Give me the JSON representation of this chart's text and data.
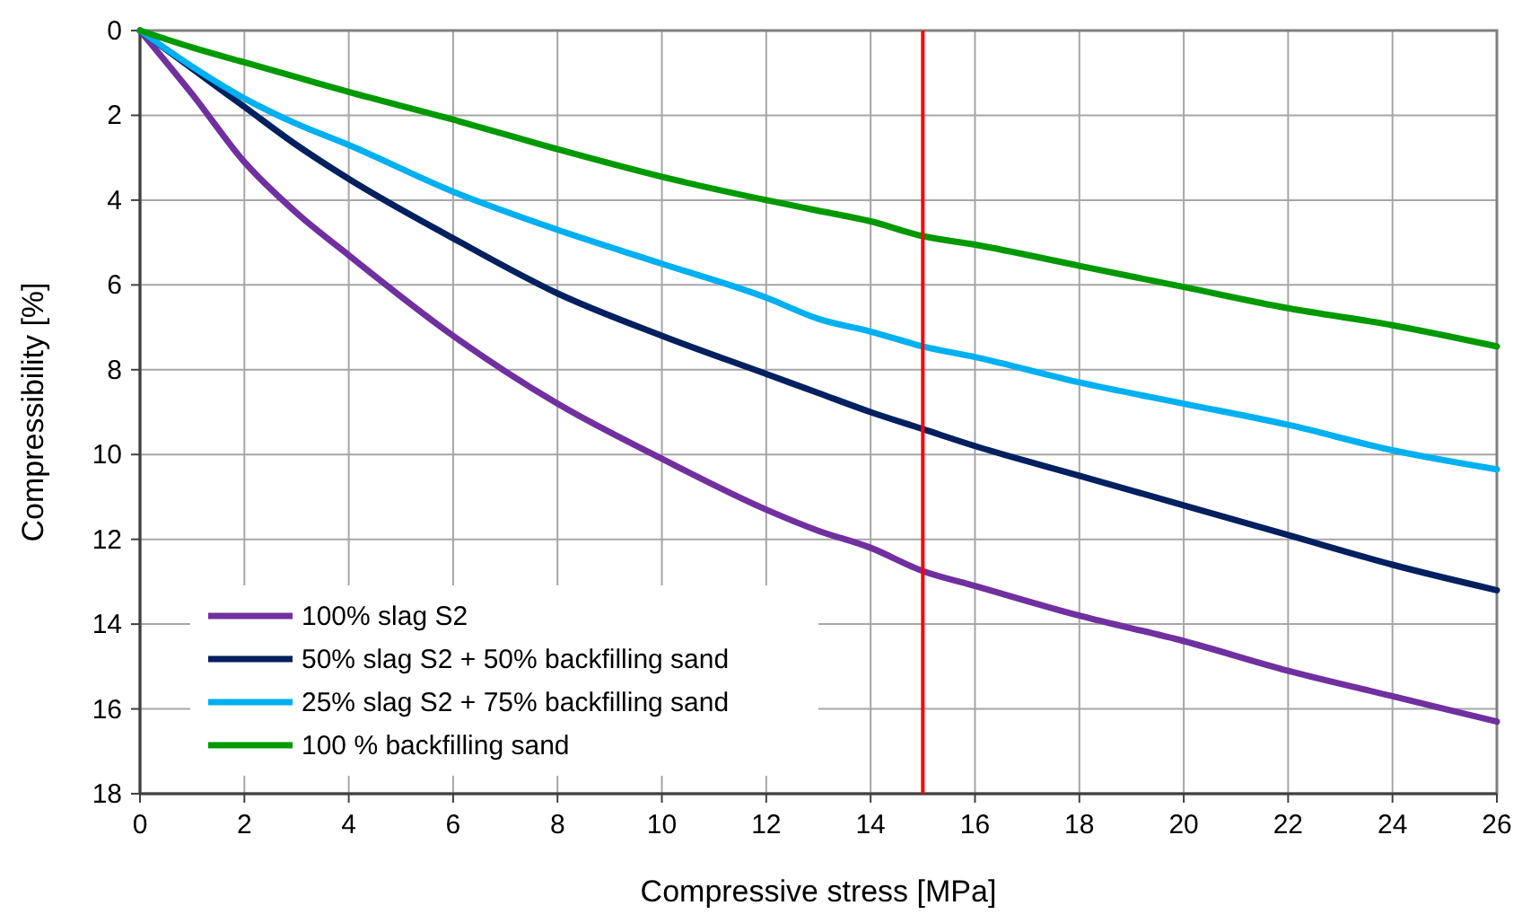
{
  "chart_data": {
    "type": "line",
    "xlabel": "Compressive stress [MPa]",
    "ylabel": "Compressibility  [%]",
    "x": [
      0,
      1,
      2,
      3,
      4,
      6,
      8,
      10,
      12,
      13,
      14,
      15,
      16,
      18,
      20,
      22,
      24,
      26
    ],
    "series": [
      {
        "name": "100% slag S2",
        "color": "#7030a0",
        "values": [
          0,
          1.5,
          3.1,
          4.3,
          5.3,
          7.2,
          8.8,
          10.1,
          11.3,
          11.8,
          12.2,
          12.75,
          13.1,
          13.8,
          14.4,
          15.1,
          15.7,
          16.3
        ]
      },
      {
        "name": "50% slag S2 + 50%  backfilling sand",
        "color": "#002060",
        "values": [
          0,
          0.9,
          1.8,
          2.7,
          3.5,
          4.9,
          6.2,
          7.2,
          8.1,
          8.55,
          9.0,
          9.4,
          9.8,
          10.5,
          11.2,
          11.9,
          12.6,
          13.2
        ]
      },
      {
        "name": "25% slag S2 + 75%  backfilling sand",
        "color": "#00b0f0",
        "values": [
          0,
          0.85,
          1.6,
          2.2,
          2.7,
          3.8,
          4.7,
          5.5,
          6.3,
          6.8,
          7.1,
          7.45,
          7.7,
          8.3,
          8.8,
          9.3,
          9.9,
          10.35
        ]
      },
      {
        "name": "100 % backfilling sand",
        "color": "#009900",
        "values": [
          0,
          0.4,
          0.75,
          1.1,
          1.45,
          2.1,
          2.8,
          3.45,
          4.0,
          4.25,
          4.5,
          4.85,
          5.05,
          5.55,
          6.05,
          6.55,
          6.95,
          7.45
        ]
      }
    ],
    "xlim": [
      0,
      26
    ],
    "xticks": [
      0,
      2,
      4,
      6,
      8,
      10,
      12,
      14,
      16,
      18,
      20,
      22,
      24,
      26
    ],
    "ylim": [
      18,
      0
    ],
    "yticks": [
      0,
      2,
      4,
      6,
      8,
      10,
      12,
      14,
      16,
      18
    ],
    "ref_lines": [
      {
        "axis": "x",
        "value": 15,
        "color": "#ff0000"
      }
    ],
    "grid": true,
    "legend": "bottom left",
    "line_style": "solid",
    "marker": "none"
  }
}
